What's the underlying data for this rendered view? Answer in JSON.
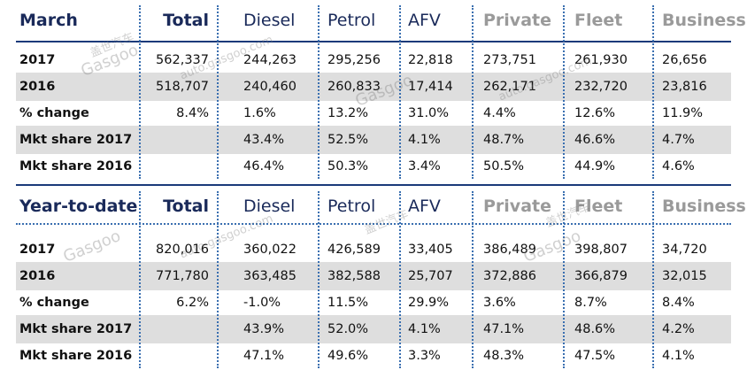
{
  "columns": {
    "total": "Total",
    "diesel": "Diesel",
    "petrol": "Petrol",
    "afv": "AFV",
    "private": "Private",
    "fleet": "Fleet",
    "business": "Business"
  },
  "march": {
    "title": "March",
    "rows": [
      {
        "label": "2017",
        "total": "562,337",
        "diesel": "244,263",
        "petrol": "295,256",
        "afv": "22,818",
        "private": "273,751",
        "fleet": "261,930",
        "business": "26,656"
      },
      {
        "label": "2016",
        "total": "518,707",
        "diesel": "240,460",
        "petrol": "260,833",
        "afv": "17,414",
        "private": "262,171",
        "fleet": "232,720",
        "business": "23,816"
      },
      {
        "label": "% change",
        "total": "8.4%",
        "diesel": "1.6%",
        "petrol": "13.2%",
        "afv": "31.0%",
        "private": "4.4%",
        "fleet": "12.6%",
        "business": "11.9%"
      },
      {
        "label": "Mkt share 2017",
        "total": "",
        "diesel": "43.4%",
        "petrol": "52.5%",
        "afv": "4.1%",
        "private": "48.7%",
        "fleet": "46.6%",
        "business": "4.7%"
      },
      {
        "label": "Mkt share 2016",
        "total": "",
        "diesel": "46.4%",
        "petrol": "50.3%",
        "afv": "3.4%",
        "private": "50.5%",
        "fleet": "44.9%",
        "business": "4.6%"
      }
    ]
  },
  "ytd": {
    "title": "Year-to-date",
    "rows": [
      {
        "label": "2017",
        "total": "820,016",
        "diesel": "360,022",
        "petrol": "426,589",
        "afv": "33,405",
        "private": "386,489",
        "fleet": "398,807",
        "business": "34,720"
      },
      {
        "label": "2016",
        "total": "771,780",
        "diesel": "363,485",
        "petrol": "382,588",
        "afv": "25,707",
        "private": "372,886",
        "fleet": "366,879",
        "business": "32,015"
      },
      {
        "label": "% change",
        "total": "6.2%",
        "diesel": "-1.0%",
        "petrol": "11.5%",
        "afv": "29.9%",
        "private": "3.6%",
        "fleet": "8.7%",
        "business": "8.4%"
      },
      {
        "label": "Mkt share 2017",
        "total": "",
        "diesel": "43.9%",
        "petrol": "52.0%",
        "afv": "4.1%",
        "private": "47.1%",
        "fleet": "48.6%",
        "business": "4.2%"
      },
      {
        "label": "Mkt share 2016",
        "total": "",
        "diesel": "47.1%",
        "petrol": "49.6%",
        "afv": "3.3%",
        "private": "48.3%",
        "fleet": "47.5%",
        "business": "4.1%"
      }
    ]
  },
  "watermark": {
    "brand": "Gasgoo",
    "chinese": "盖世汽车",
    "url": "auto.gasgoo.com"
  }
}
